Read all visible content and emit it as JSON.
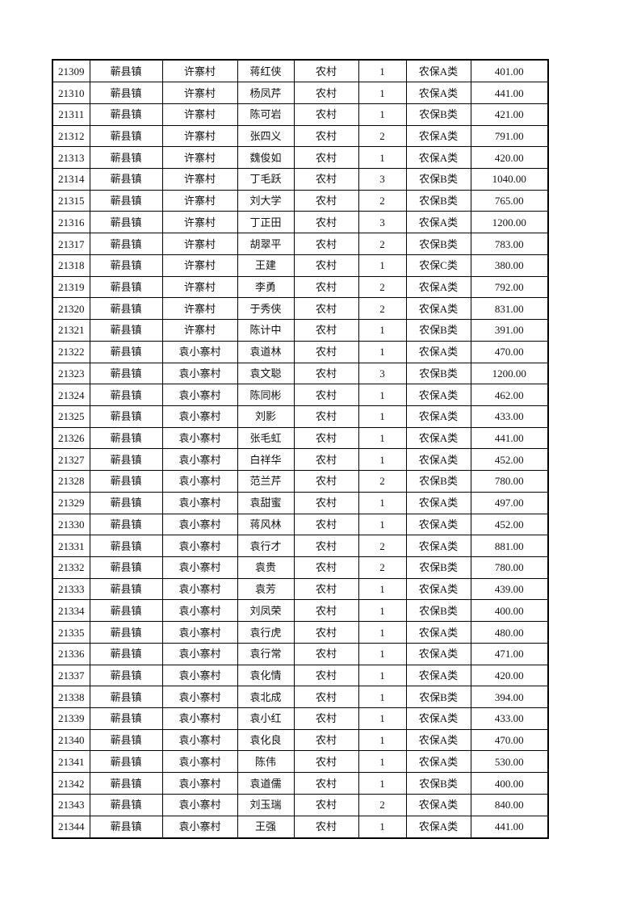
{
  "page": {
    "background_color": "#ffffff",
    "border_color": "#000000",
    "text_color": "#121212"
  },
  "table": {
    "column_keys": [
      "id",
      "town",
      "village",
      "name",
      "residence_type",
      "person_count",
      "insurance_category",
      "amount"
    ],
    "rows": [
      [
        "21309",
        "蕲县镇",
        "许寨村",
        "蒋红侠",
        "农村",
        "1",
        "农保A类",
        "401.00"
      ],
      [
        "21310",
        "蕲县镇",
        "许寨村",
        "杨凤芹",
        "农村",
        "1",
        "农保A类",
        "441.00"
      ],
      [
        "21311",
        "蕲县镇",
        "许寨村",
        "陈可岩",
        "农村",
        "1",
        "农保B类",
        "421.00"
      ],
      [
        "21312",
        "蕲县镇",
        "许寨村",
        "张四义",
        "农村",
        "2",
        "农保A类",
        "791.00"
      ],
      [
        "21313",
        "蕲县镇",
        "许寨村",
        "魏俊如",
        "农村",
        "1",
        "农保A类",
        "420.00"
      ],
      [
        "21314",
        "蕲县镇",
        "许寨村",
        "丁毛跃",
        "农村",
        "3",
        "农保B类",
        "1040.00"
      ],
      [
        "21315",
        "蕲县镇",
        "许寨村",
        "刘大学",
        "农村",
        "2",
        "农保B类",
        "765.00"
      ],
      [
        "21316",
        "蕲县镇",
        "许寨村",
        "丁正田",
        "农村",
        "3",
        "农保A类",
        "1200.00"
      ],
      [
        "21317",
        "蕲县镇",
        "许寨村",
        "胡翠平",
        "农村",
        "2",
        "农保B类",
        "783.00"
      ],
      [
        "21318",
        "蕲县镇",
        "许寨村",
        "王建",
        "农村",
        "1",
        "农保C类",
        "380.00"
      ],
      [
        "21319",
        "蕲县镇",
        "许寨村",
        "李勇",
        "农村",
        "2",
        "农保A类",
        "792.00"
      ],
      [
        "21320",
        "蕲县镇",
        "许寨村",
        "于秀侠",
        "农村",
        "2",
        "农保A类",
        "831.00"
      ],
      [
        "21321",
        "蕲县镇",
        "许寨村",
        "陈计中",
        "农村",
        "1",
        "农保B类",
        "391.00"
      ],
      [
        "21322",
        "蕲县镇",
        "袁小寨村",
        "袁道林",
        "农村",
        "1",
        "农保A类",
        "470.00"
      ],
      [
        "21323",
        "蕲县镇",
        "袁小寨村",
        "袁文聪",
        "农村",
        "3",
        "农保B类",
        "1200.00"
      ],
      [
        "21324",
        "蕲县镇",
        "袁小寨村",
        "陈同彬",
        "农村",
        "1",
        "农保A类",
        "462.00"
      ],
      [
        "21325",
        "蕲县镇",
        "袁小寨村",
        "刘影",
        "农村",
        "1",
        "农保A类",
        "433.00"
      ],
      [
        "21326",
        "蕲县镇",
        "袁小寨村",
        "张毛虹",
        "农村",
        "1",
        "农保A类",
        "441.00"
      ],
      [
        "21327",
        "蕲县镇",
        "袁小寨村",
        "白祥华",
        "农村",
        "1",
        "农保A类",
        "452.00"
      ],
      [
        "21328",
        "蕲县镇",
        "袁小寨村",
        "范兰芹",
        "农村",
        "2",
        "农保B类",
        "780.00"
      ],
      [
        "21329",
        "蕲县镇",
        "袁小寨村",
        "袁甜蜜",
        "农村",
        "1",
        "农保A类",
        "497.00"
      ],
      [
        "21330",
        "蕲县镇",
        "袁小寨村",
        "蒋风林",
        "农村",
        "1",
        "农保A类",
        "452.00"
      ],
      [
        "21331",
        "蕲县镇",
        "袁小寨村",
        "袁行才",
        "农村",
        "2",
        "农保A类",
        "881.00"
      ],
      [
        "21332",
        "蕲县镇",
        "袁小寨村",
        "袁贵",
        "农村",
        "2",
        "农保B类",
        "780.00"
      ],
      [
        "21333",
        "蕲县镇",
        "袁小寨村",
        "袁芳",
        "农村",
        "1",
        "农保A类",
        "439.00"
      ],
      [
        "21334",
        "蕲县镇",
        "袁小寨村",
        "刘凤荣",
        "农村",
        "1",
        "农保B类",
        "400.00"
      ],
      [
        "21335",
        "蕲县镇",
        "袁小寨村",
        "袁行虎",
        "农村",
        "1",
        "农保A类",
        "480.00"
      ],
      [
        "21336",
        "蕲县镇",
        "袁小寨村",
        "袁行常",
        "农村",
        "1",
        "农保A类",
        "471.00"
      ],
      [
        "21337",
        "蕲县镇",
        "袁小寨村",
        "袁化情",
        "农村",
        "1",
        "农保A类",
        "420.00"
      ],
      [
        "21338",
        "蕲县镇",
        "袁小寨村",
        "袁北成",
        "农村",
        "1",
        "农保B类",
        "394.00"
      ],
      [
        "21339",
        "蕲县镇",
        "袁小寨村",
        "袁小红",
        "农村",
        "1",
        "农保A类",
        "433.00"
      ],
      [
        "21340",
        "蕲县镇",
        "袁小寨村",
        "袁化良",
        "农村",
        "1",
        "农保A类",
        "470.00"
      ],
      [
        "21341",
        "蕲县镇",
        "袁小寨村",
        "陈伟",
        "农村",
        "1",
        "农保A类",
        "530.00"
      ],
      [
        "21342",
        "蕲县镇",
        "袁小寨村",
        "袁道儒",
        "农村",
        "1",
        "农保B类",
        "400.00"
      ],
      [
        "21343",
        "蕲县镇",
        "袁小寨村",
        "刘玉瑞",
        "农村",
        "2",
        "农保A类",
        "840.00"
      ],
      [
        "21344",
        "蕲县镇",
        "袁小寨村",
        "王强",
        "农村",
        "1",
        "农保A类",
        "441.00"
      ]
    ]
  }
}
